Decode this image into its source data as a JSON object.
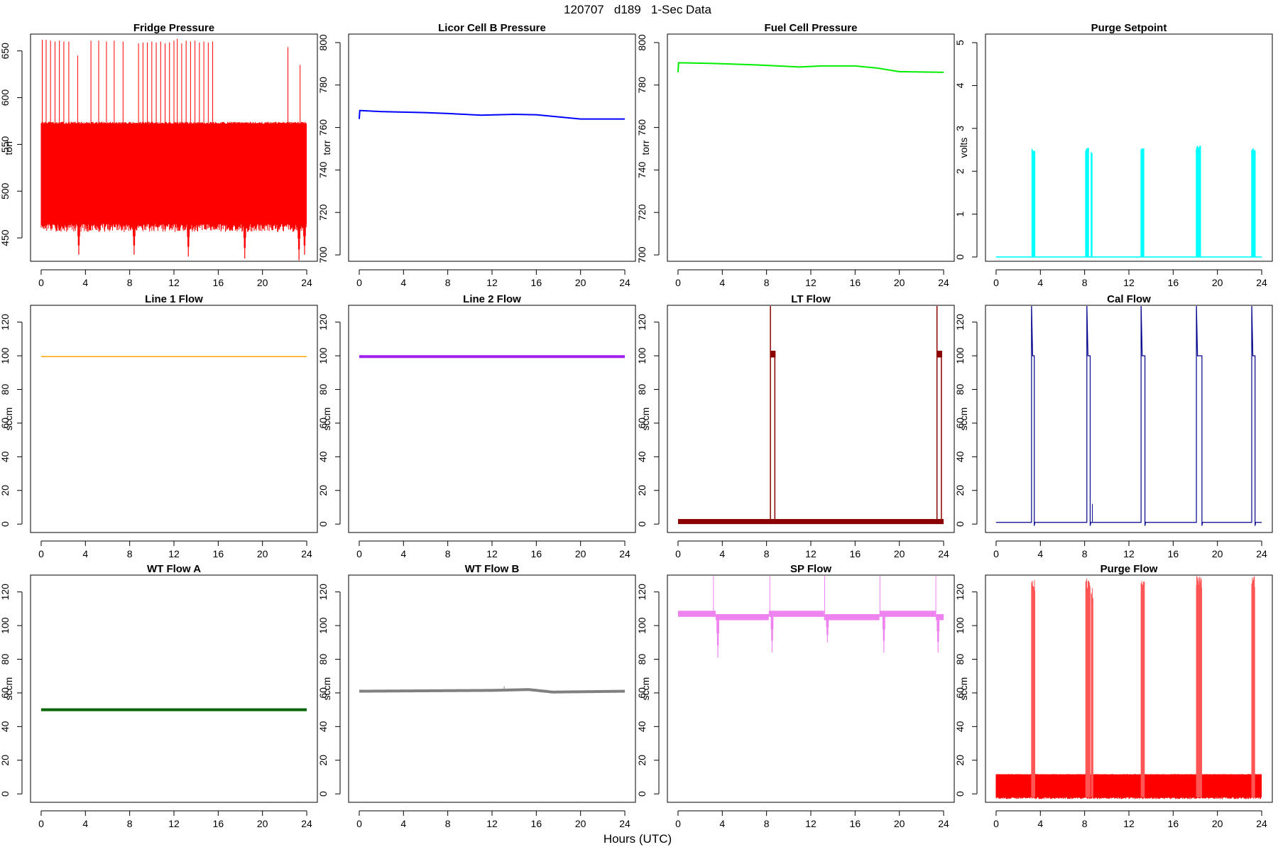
{
  "figure": {
    "title": "120707   d189   1-Sec Data",
    "xlabel": "Hours (UTC)"
  },
  "chart_data": [
    {
      "type": "line",
      "title": "Fridge Pressure",
      "ylabel": "torr",
      "color": "#ff0000",
      "xlim": [
        0,
        24
      ],
      "ylim": [
        425,
        668
      ],
      "xticks": [
        0,
        4,
        8,
        12,
        16,
        20,
        24
      ],
      "yticks": [
        450,
        500,
        550,
        600,
        650
      ],
      "band": {
        "low": 465,
        "high": 572
      },
      "spikes_up": [
        {
          "x": 0.1,
          "y": 662
        },
        {
          "x": 0.45,
          "y": 662
        },
        {
          "x": 0.85,
          "y": 661
        },
        {
          "x": 1.25,
          "y": 660
        },
        {
          "x": 1.65,
          "y": 661
        },
        {
          "x": 2.05,
          "y": 660
        },
        {
          "x": 2.5,
          "y": 660
        },
        {
          "x": 3.3,
          "y": 645
        },
        {
          "x": 4.5,
          "y": 661
        },
        {
          "x": 5.2,
          "y": 661
        },
        {
          "x": 5.9,
          "y": 660
        },
        {
          "x": 6.6,
          "y": 661
        },
        {
          "x": 7.4,
          "y": 660
        },
        {
          "x": 8.8,
          "y": 658
        },
        {
          "x": 9.2,
          "y": 659
        },
        {
          "x": 9.6,
          "y": 659
        },
        {
          "x": 10.0,
          "y": 660
        },
        {
          "x": 10.4,
          "y": 659
        },
        {
          "x": 10.8,
          "y": 660
        },
        {
          "x": 11.2,
          "y": 658
        },
        {
          "x": 11.6,
          "y": 659
        },
        {
          "x": 12.0,
          "y": 661
        },
        {
          "x": 12.3,
          "y": 663
        },
        {
          "x": 12.7,
          "y": 658
        },
        {
          "x": 13.1,
          "y": 661
        },
        {
          "x": 13.5,
          "y": 660
        },
        {
          "x": 13.9,
          "y": 661
        },
        {
          "x": 14.3,
          "y": 659
        },
        {
          "x": 14.7,
          "y": 660
        },
        {
          "x": 15.1,
          "y": 659
        },
        {
          "x": 15.5,
          "y": 660
        },
        {
          "x": 22.3,
          "y": 654
        },
        {
          "x": 23.4,
          "y": 635
        }
      ],
      "spikes_down": [
        {
          "x": 3.4,
          "y": 432
        },
        {
          "x": 8.4,
          "y": 432
        },
        {
          "x": 13.3,
          "y": 430
        },
        {
          "x": 18.4,
          "y": 428
        },
        {
          "x": 23.3,
          "y": 426
        },
        {
          "x": 23.8,
          "y": 432
        }
      ]
    },
    {
      "type": "line",
      "title": "Licor Cell B Pressure",
      "ylabel": "torr",
      "color": "#0000ff",
      "xlim": [
        0,
        24
      ],
      "ylim": [
        697,
        804
      ],
      "xticks": [
        0,
        4,
        8,
        12,
        16,
        20,
        24
      ],
      "yticks": [
        700,
        720,
        740,
        760,
        780,
        800
      ],
      "points": [
        [
          0,
          764
        ],
        [
          0.05,
          768
        ],
        [
          2,
          767.5
        ],
        [
          6,
          767
        ],
        [
          8,
          766.6
        ],
        [
          11,
          765.8
        ],
        [
          14,
          766.2
        ],
        [
          16,
          766
        ],
        [
          18,
          765
        ],
        [
          20,
          764
        ],
        [
          24,
          764
        ]
      ]
    },
    {
      "type": "line",
      "title": "Fuel Cell Pressure",
      "ylabel": "torr",
      "color": "#00ee00",
      "xlim": [
        0,
        24
      ],
      "ylim": [
        697,
        804
      ],
      "xticks": [
        0,
        4,
        8,
        12,
        16,
        20,
        24
      ],
      "yticks": [
        700,
        720,
        740,
        760,
        780,
        800
      ],
      "points": [
        [
          0,
          786
        ],
        [
          0.05,
          790.5
        ],
        [
          3,
          790.2
        ],
        [
          7,
          789.5
        ],
        [
          11,
          788.5
        ],
        [
          13,
          789
        ],
        [
          16,
          789
        ],
        [
          18,
          788
        ],
        [
          20,
          786.3
        ],
        [
          24,
          786
        ]
      ]
    },
    {
      "type": "line",
      "title": "Purge Setpoint",
      "ylabel": "volts",
      "color": "#00ffff",
      "xlim": [
        0,
        24
      ],
      "ylim": [
        -0.1,
        5.2
      ],
      "xticks": [
        0,
        4,
        8,
        12,
        16,
        20,
        24
      ],
      "yticks": [
        0,
        1,
        2,
        3,
        4,
        5
      ],
      "pulses": [
        {
          "start": 3.25,
          "end": 3.5,
          "y": 2.55
        },
        {
          "start": 8.1,
          "end": 8.4,
          "y": 2.55
        },
        {
          "start": 8.6,
          "end": 8.7,
          "y": 2.5
        },
        {
          "start": 13.1,
          "end": 13.4,
          "y": 2.55
        },
        {
          "start": 18.1,
          "end": 18.5,
          "y": 2.6
        },
        {
          "start": 23.1,
          "end": 23.4,
          "y": 2.55
        }
      ]
    },
    {
      "type": "line",
      "title": "Line 1 Flow",
      "ylabel": "sccm",
      "color": "#ffa500",
      "xlim": [
        0,
        24
      ],
      "ylim": [
        -5,
        130
      ],
      "xticks": [
        0,
        4,
        8,
        12,
        16,
        20,
        24
      ],
      "yticks": [
        0,
        20,
        40,
        60,
        80,
        100,
        120
      ],
      "points": [
        [
          0,
          99.5
        ],
        [
          24,
          99.5
        ]
      ]
    },
    {
      "type": "line",
      "title": "Line 2 Flow",
      "ylabel": "sccm",
      "color": "#a020f0",
      "xlim": [
        0,
        24
      ],
      "ylim": [
        -5,
        130
      ],
      "xticks": [
        0,
        4,
        8,
        12,
        16,
        20,
        24
      ],
      "yticks": [
        0,
        20,
        40,
        60,
        80,
        100,
        120
      ],
      "points": [
        [
          0,
          99.5
        ],
        [
          24,
          99.5
        ]
      ]
    },
    {
      "type": "line",
      "title": "LT Flow",
      "ylabel": "sccm",
      "color": "#8b0000",
      "xlim": [
        0,
        24
      ],
      "ylim": [
        -5,
        130
      ],
      "xticks": [
        0,
        4,
        8,
        12,
        16,
        20,
        24
      ],
      "yticks": [
        0,
        20,
        40,
        60,
        80,
        100,
        120
      ],
      "baseline": {
        "low": 0,
        "high": 3
      },
      "events": [
        {
          "start": 8.35,
          "end": 8.75,
          "level": 101
        },
        {
          "start": 23.4,
          "end": 23.8,
          "level": 101
        }
      ]
    },
    {
      "type": "line",
      "title": "Cal Flow",
      "ylabel": "sccm",
      "color": "#00008b",
      "xlim": [
        0,
        24
      ],
      "ylim": [
        -5,
        130
      ],
      "xticks": [
        0,
        4,
        8,
        12,
        16,
        20,
        24
      ],
      "yticks": [
        0,
        20,
        40,
        60,
        80,
        100,
        120
      ],
      "baseline": 1,
      "events": [
        {
          "start": 3.3,
          "end": 3.45
        },
        {
          "start": 8.3,
          "end": 8.5
        },
        {
          "start": 13.2,
          "end": 13.45
        },
        {
          "start": 18.2,
          "end": 18.6
        },
        {
          "start": 23.2,
          "end": 23.4
        }
      ]
    },
    {
      "type": "line",
      "title": "WT Flow A",
      "ylabel": "sccm",
      "color": "#006400",
      "xlim": [
        0,
        24
      ],
      "ylim": [
        -5,
        130
      ],
      "xticks": [
        0,
        4,
        8,
        12,
        16,
        20,
        24
      ],
      "yticks": [
        0,
        20,
        40,
        60,
        80,
        100,
        120
      ],
      "points": [
        [
          0,
          50
        ],
        [
          24,
          50
        ]
      ]
    },
    {
      "type": "line",
      "title": "WT Flow B",
      "ylabel": "sccm",
      "color": "#808080",
      "xlim": [
        0,
        24
      ],
      "ylim": [
        -5,
        130
      ],
      "xticks": [
        0,
        4,
        8,
        12,
        16,
        20,
        24
      ],
      "yticks": [
        0,
        20,
        40,
        60,
        80,
        100,
        120
      ],
      "points": [
        [
          0,
          61
        ],
        [
          12,
          61.5
        ],
        [
          15.3,
          62
        ],
        [
          17.5,
          60.5
        ],
        [
          24,
          61
        ]
      ]
    },
    {
      "type": "line",
      "title": "SP Flow",
      "ylabel": "sccm",
      "color": "#ee82ee",
      "xlim": [
        0,
        24
      ],
      "ylim": [
        -5,
        130
      ],
      "xticks": [
        0,
        4,
        8,
        12,
        16,
        20,
        24
      ],
      "yticks": [
        0,
        20,
        40,
        60,
        80,
        100,
        120
      ],
      "segments": [
        {
          "start": 0,
          "end": 3.4,
          "y": 107
        },
        {
          "start": 3.4,
          "end": 8.2,
          "y": 105
        },
        {
          "start": 8.2,
          "end": 13.2,
          "y": 107
        },
        {
          "start": 13.2,
          "end": 18.2,
          "y": 105
        },
        {
          "start": 18.2,
          "end": 23.3,
          "y": 107
        },
        {
          "start": 23.3,
          "end": 24,
          "y": 105
        }
      ],
      "spikes_up": [
        {
          "x": 3.2,
          "y": 130
        },
        {
          "x": 8.3,
          "y": 130
        },
        {
          "x": 13.25,
          "y": 130
        },
        {
          "x": 18.25,
          "y": 130
        },
        {
          "x": 23.3,
          "y": 130
        }
      ],
      "spikes_down": [
        {
          "x": 3.6,
          "y": 81
        },
        {
          "x": 8.5,
          "y": 84
        },
        {
          "x": 13.5,
          "y": 90
        },
        {
          "x": 18.6,
          "y": 84
        },
        {
          "x": 23.5,
          "y": 84
        }
      ]
    },
    {
      "type": "line",
      "title": "Purge Flow",
      "ylabel": "sccm",
      "color": "#ff0000",
      "xlim": [
        0,
        24
      ],
      "ylim": [
        -5,
        130
      ],
      "xticks": [
        0,
        4,
        8,
        12,
        16,
        20,
        24
      ],
      "yticks": [
        0,
        20,
        40,
        60,
        80,
        100,
        120
      ],
      "band": {
        "low": -2,
        "high": 11.5
      },
      "bursts": [
        {
          "start": 3.2,
          "end": 3.5,
          "peak": 127
        },
        {
          "start": 8.1,
          "end": 8.5,
          "peak": 129
        },
        {
          "start": 8.6,
          "end": 8.75,
          "peak": 124
        },
        {
          "start": 13.1,
          "end": 13.4,
          "peak": 127
        },
        {
          "start": 18.1,
          "end": 18.6,
          "peak": 130
        },
        {
          "start": 23.1,
          "end": 23.4,
          "peak": 130
        }
      ]
    }
  ]
}
